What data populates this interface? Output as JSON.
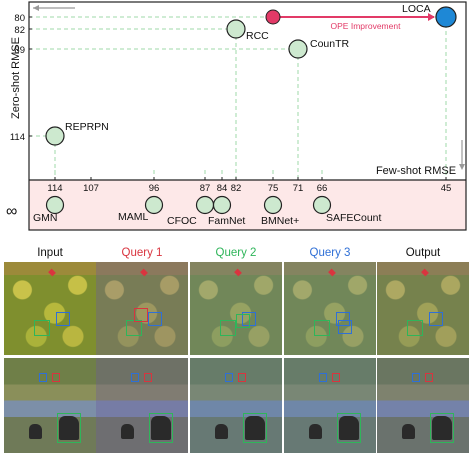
{
  "chart_data": {
    "type": "scatter",
    "y_axis": {
      "label": "Zero-shot RMSE",
      "ticks": [
        80,
        82,
        89,
        114
      ],
      "inverted": true
    },
    "x_axis": {
      "label": "Few-shot RMSE",
      "ticks": [
        114,
        107,
        96,
        87,
        84,
        82,
        75,
        71,
        66,
        45
      ],
      "inverted": true
    },
    "zero_shot_points": [
      {
        "name": "LOCA",
        "few_shot": 45,
        "zero_shot": 80,
        "color": "#1e88d6"
      },
      {
        "name": "RCC",
        "few_shot": 82,
        "zero_shot": 82,
        "color": "#cde9cf"
      },
      {
        "name": "CounTR",
        "few_shot": 71,
        "zero_shot": 89,
        "color": "#cde9cf"
      },
      {
        "name": "REPRPN",
        "few_shot": 114,
        "zero_shot": 114,
        "color": "#cde9cf"
      }
    ],
    "few_shot_only_points": [
      {
        "name": "GMN",
        "few_shot": 114
      },
      {
        "name": "MAML",
        "few_shot": 96
      },
      {
        "name": "CFOCNet",
        "few_shot": 87
      },
      {
        "name": "FamNet",
        "few_shot": 84
      },
      {
        "name": "BMNet+",
        "few_shot": 75
      },
      {
        "name": "SAFECount",
        "few_shot": 66
      }
    ],
    "infinity_label": "∞",
    "annotation": {
      "label": "OPE Improvement",
      "from_few_shot": 75,
      "to_few_shot": 45,
      "zero_shot": 80,
      "start_color": "#e23a67",
      "color": "#e23a67"
    },
    "label_overrides": {
      "CFOCNet": "CFOC"
    },
    "grid": false
  },
  "figure": {
    "titles": [
      "Input",
      "Query 1",
      "Query 2",
      "Query 3",
      "Output"
    ],
    "title_colors": [
      "#111111",
      "#d9343f",
      "#2fb55a",
      "#2f6fd6",
      "#111111"
    ]
  }
}
